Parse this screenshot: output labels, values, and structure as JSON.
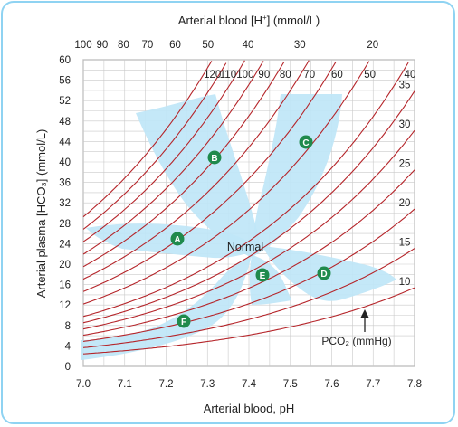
{
  "titles": {
    "top": "Arterial blood [H",
    "top_sup": "+",
    "top_unit": "] (mmol/L)",
    "left": "Arterial plasma [HCO₃] (mmol/L)",
    "bottom": "Arterial blood, pH"
  },
  "ph_ticks": [
    "7.0",
    "7.1",
    "7.2",
    "7.3",
    "7.4",
    "7.5",
    "7.6",
    "7.7",
    "7.8"
  ],
  "hco3_ticks": [
    "0",
    "4",
    "8",
    "12",
    "16",
    "20",
    "24",
    "28",
    "32",
    "36",
    "40",
    "44",
    "48",
    "52",
    "56",
    "60"
  ],
  "h_ticks": [
    {
      "label": "100",
      "value": 100
    },
    {
      "label": "90",
      "value": 90
    },
    {
      "label": "80",
      "value": 80
    },
    {
      "label": "70",
      "value": 70
    },
    {
      "label": "60",
      "value": 60
    },
    {
      "label": "50",
      "value": 50
    },
    {
      "label": "40",
      "value": 40
    },
    {
      "label": "30",
      "value": 30
    },
    {
      "label": "20",
      "value": 20
    }
  ],
  "pco2_isobars": [
    10,
    15,
    20,
    25,
    30,
    35,
    40,
    50,
    60,
    70,
    80,
    90,
    100,
    110,
    120
  ],
  "pco2_labels_top": [
    {
      "label": "120",
      "value": 120
    },
    {
      "label": "110",
      "value": 110
    },
    {
      "label": "100",
      "value": 100
    },
    {
      "label": "90",
      "value": 90
    },
    {
      "label": "80",
      "value": 80
    },
    {
      "label": "70",
      "value": 70
    },
    {
      "label": "60",
      "value": 60
    },
    {
      "label": "50",
      "value": 50
    },
    {
      "label": "40",
      "value": 40
    }
  ],
  "pco2_labels_right": [
    {
      "label": "35",
      "value": 35
    },
    {
      "label": "30",
      "value": 30
    },
    {
      "label": "25",
      "value": 25
    },
    {
      "label": "20",
      "value": 20
    },
    {
      "label": "15",
      "value": 15
    },
    {
      "label": "10",
      "value": 10
    }
  ],
  "pco2_caption": "PCO₂ (mmHg)",
  "normal_label": "Normal",
  "regions": [
    {
      "key": "A",
      "label": "A"
    },
    {
      "key": "B",
      "label": "B"
    },
    {
      "key": "C",
      "label": "C"
    },
    {
      "key": "D",
      "label": "D"
    },
    {
      "key": "E",
      "label": "E"
    },
    {
      "key": "F",
      "label": "F"
    }
  ],
  "colors": {
    "isobar": "#b5252a",
    "grid": "#c9c9c9",
    "region_fill": "#bfe6f7",
    "badge": "#1f8a4c",
    "frame": "#8fd3f2"
  }
}
